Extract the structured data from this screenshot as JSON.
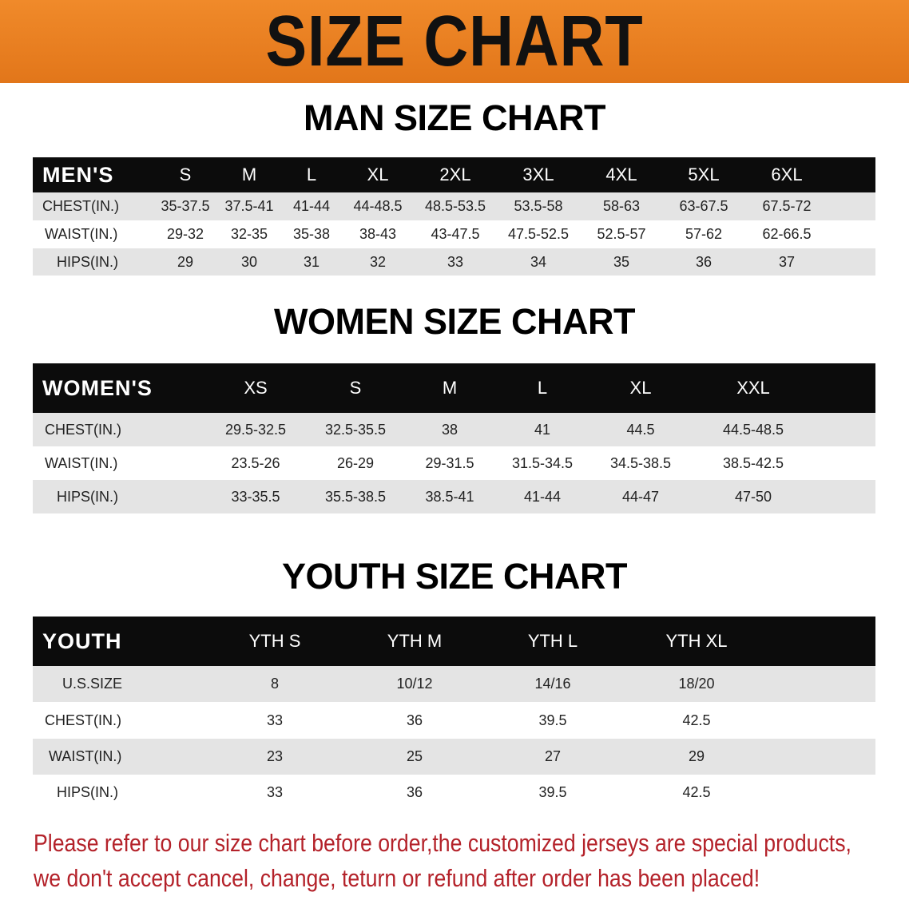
{
  "banner_title": "SIZE CHART",
  "men": {
    "title": "MAN SIZE CHART",
    "header": [
      "MEN'S",
      "S",
      "M",
      "L",
      "XL",
      "2XL",
      "3XL",
      "4XL",
      "5XL",
      "6XL"
    ],
    "rows": [
      [
        "CHEST(IN.)",
        "35-37.5",
        "37.5-41",
        "41-44",
        "44-48.5",
        "48.5-53.5",
        "53.5-58",
        "58-63",
        "63-67.5",
        "67.5-72"
      ],
      [
        "WAIST(IN.)",
        "29-32",
        "32-35",
        "35-38",
        "38-43",
        "43-47.5",
        "47.5-52.5",
        "52.5-57",
        "57-62",
        "62-66.5"
      ],
      [
        "HIPS(IN.)",
        "29",
        "30",
        "31",
        "32",
        "33",
        "34",
        "35",
        "36",
        "37"
      ]
    ]
  },
  "women": {
    "title": "WOMEN SIZE CHART",
    "header": [
      "WOMEN'S",
      "XS",
      "S",
      "M",
      "L",
      "XL",
      "XXL"
    ],
    "rows": [
      [
        "CHEST(IN.)",
        "29.5-32.5",
        "32.5-35.5",
        "38",
        "41",
        "44.5",
        "44.5-48.5"
      ],
      [
        "WAIST(IN.)",
        "23.5-26",
        "26-29",
        "29-31.5",
        "31.5-34.5",
        "34.5-38.5",
        "38.5-42.5"
      ],
      [
        "HIPS(IN.)",
        "33-35.5",
        "35.5-38.5",
        "38.5-41",
        "41-44",
        "44-47",
        "47-50"
      ]
    ]
  },
  "youth": {
    "title": "YOUTH SIZE CHART",
    "header": [
      "YOUTH",
      "YTH S",
      "YTH M",
      "YTH L",
      "YTH XL"
    ],
    "rows": [
      [
        "U.S.SIZE",
        "8",
        "10/12",
        "14/16",
        "18/20"
      ],
      [
        "CHEST(IN.)",
        "33",
        "36",
        "39.5",
        "42.5"
      ],
      [
        "WAIST(IN.)",
        "23",
        "25",
        "27",
        "29"
      ],
      [
        "HIPS(IN.)",
        "33",
        "36",
        "39.5",
        "42.5"
      ]
    ]
  },
  "notice": [
    "Please refer to our size chart before order,the customized jerseys are special products,",
    "we don't accept cancel, change, teturn or refund after order has been placed!"
  ],
  "colors": {
    "banner": "#e87a1e",
    "header_bg": "#0c0c0c",
    "row_gray": "#e4e4e4",
    "notice": "#b4222a"
  }
}
